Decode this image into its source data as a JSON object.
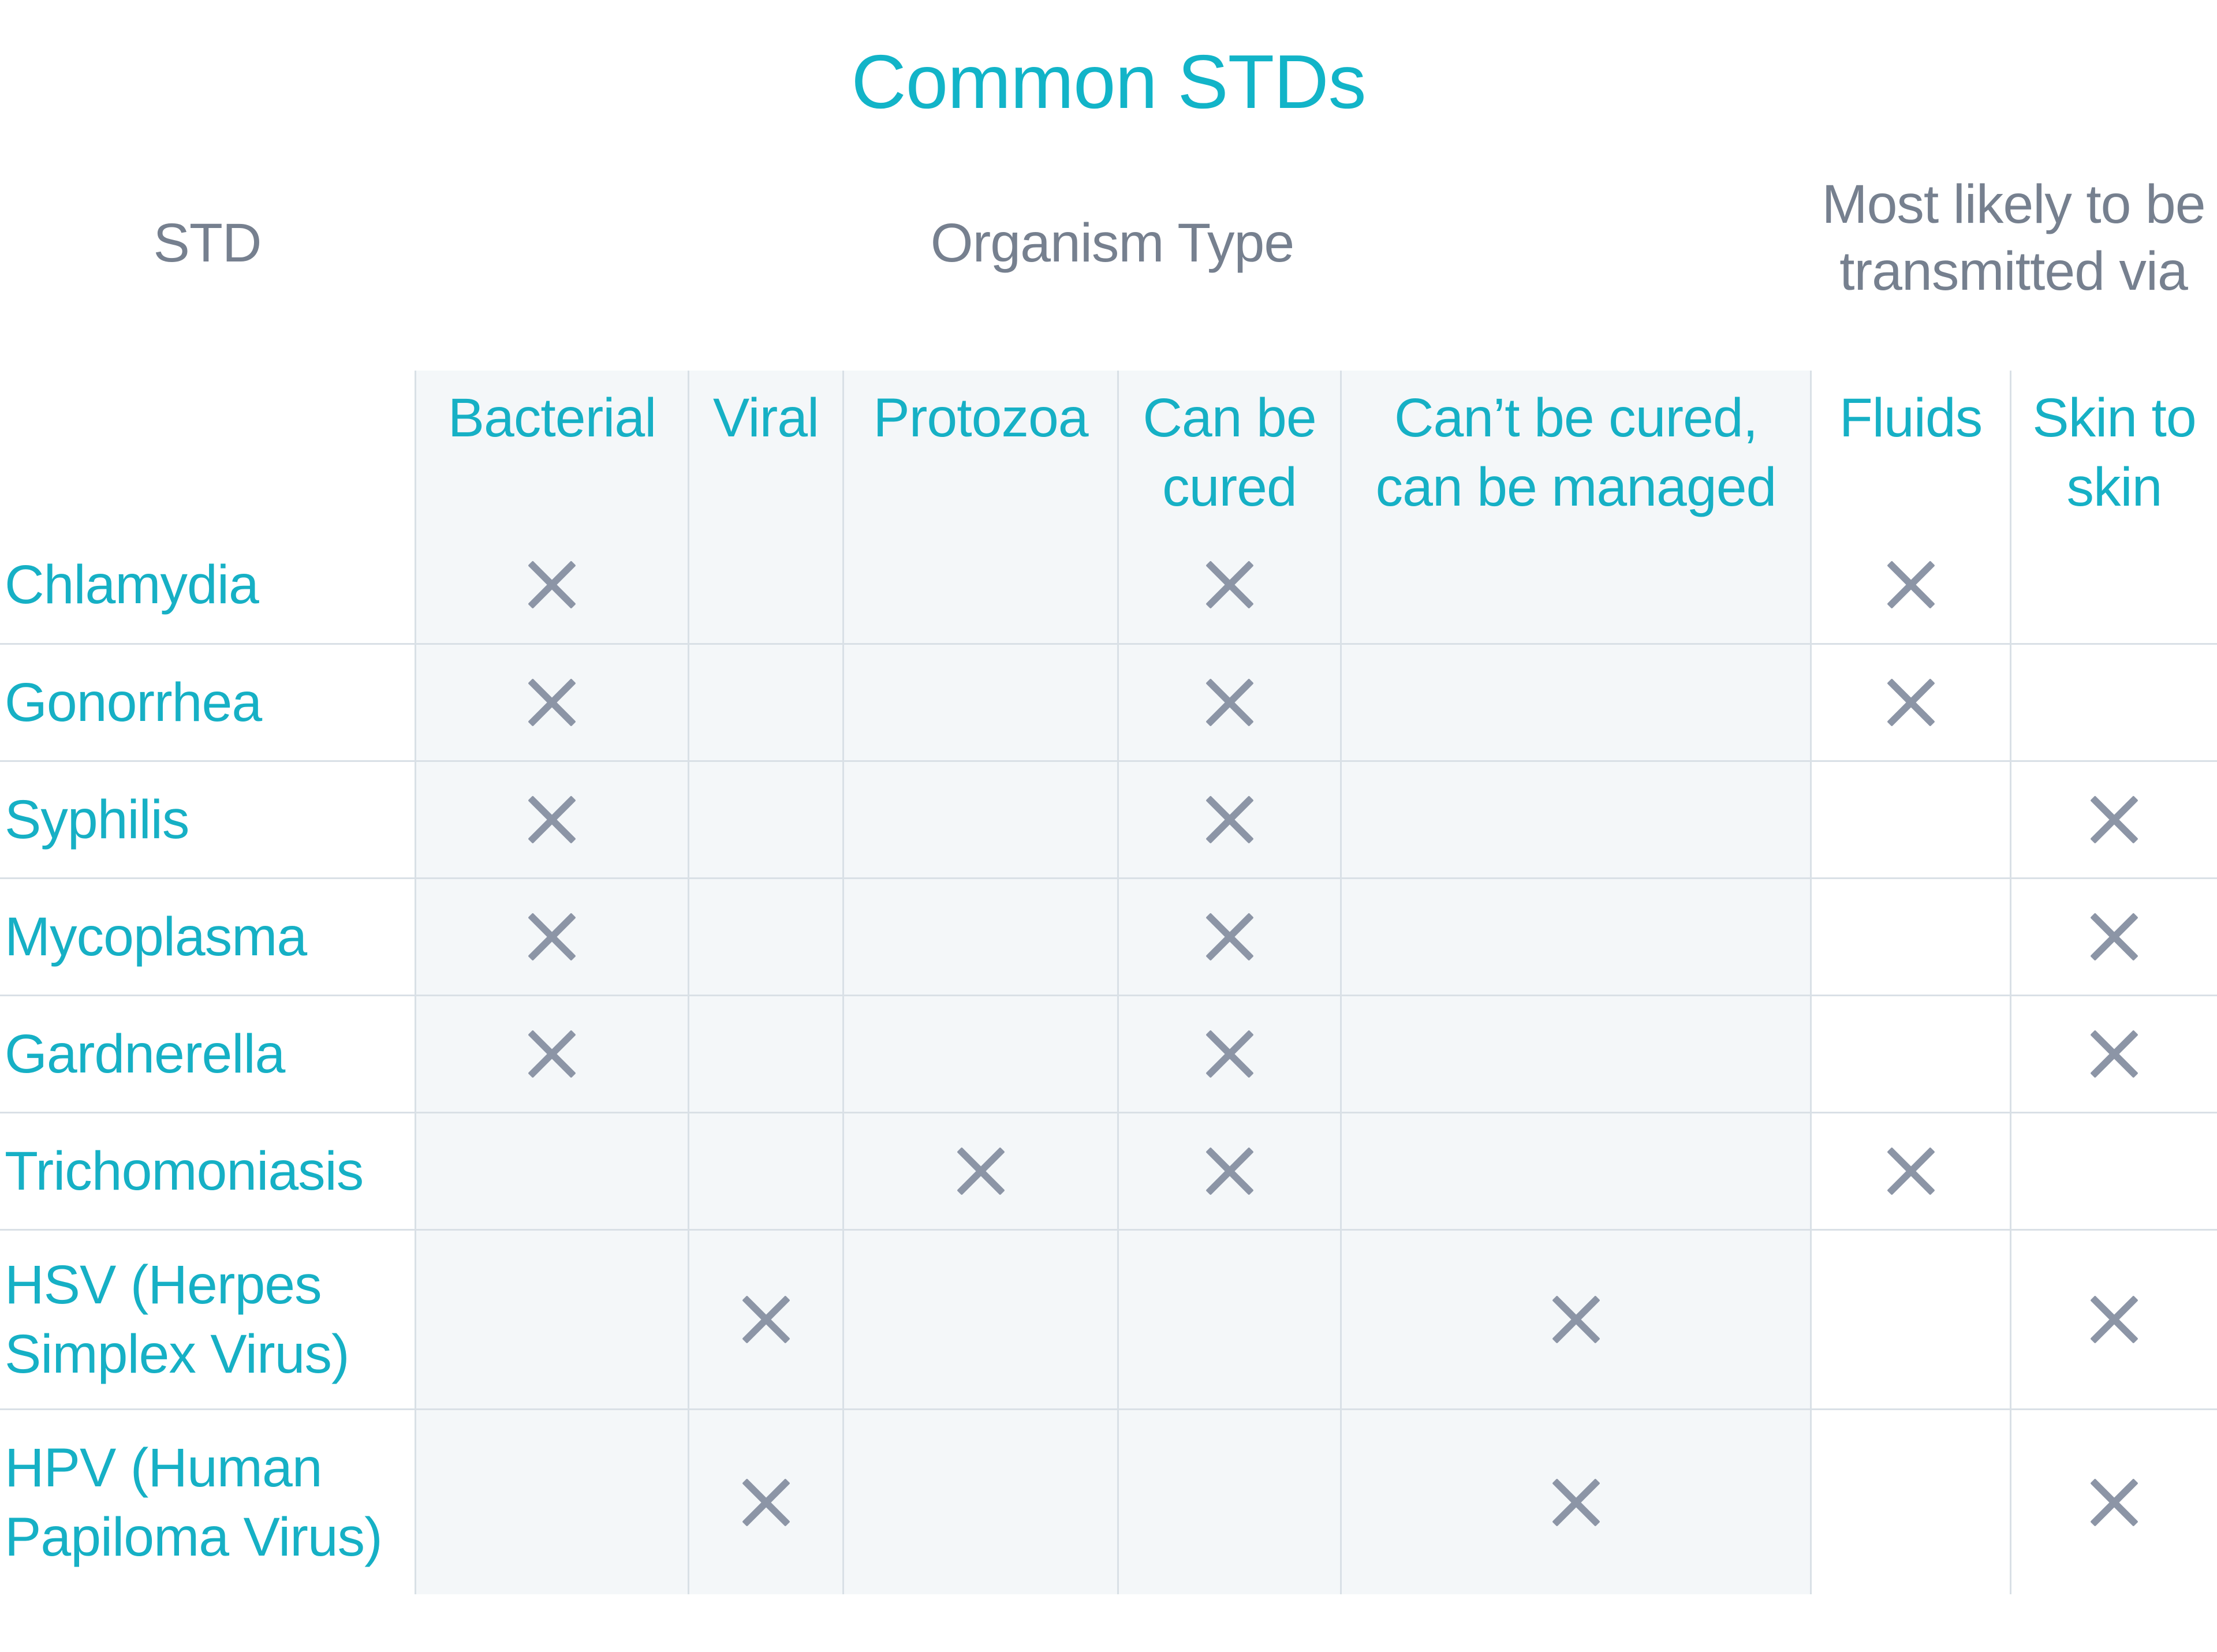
{
  "title": "Common STDs",
  "group_headers": {
    "std": "STD",
    "organism_type": "Organism Type",
    "transmission": "Most likely to be\ntransmitted via"
  },
  "columns": [
    "Bacterial",
    "Viral",
    "Protozoa",
    "Can be\ncured",
    "Can’t be cured,\ncan be managed",
    "Fluids",
    "Skin to\nskin"
  ],
  "rows": [
    {
      "label": "Chlamydia",
      "marks": [
        true,
        false,
        false,
        true,
        false,
        true,
        false
      ]
    },
    {
      "label": "Gonorrhea",
      "marks": [
        true,
        false,
        false,
        true,
        false,
        true,
        false
      ]
    },
    {
      "label": "Syphilis",
      "marks": [
        true,
        false,
        false,
        true,
        false,
        false,
        true
      ]
    },
    {
      "label": "Mycoplasma",
      "marks": [
        true,
        false,
        false,
        true,
        false,
        false,
        true
      ]
    },
    {
      "label": "Gardnerella",
      "marks": [
        true,
        false,
        false,
        true,
        false,
        false,
        true
      ]
    },
    {
      "label": "Trichomoniasis",
      "marks": [
        false,
        false,
        true,
        true,
        false,
        true,
        false
      ]
    },
    {
      "label": "HSV (Herpes\nSimplex Virus)",
      "marks": [
        false,
        true,
        false,
        false,
        true,
        false,
        true
      ]
    },
    {
      "label": "HPV (Human\nPapiloma Virus)",
      "marks": [
        false,
        true,
        false,
        false,
        true,
        false,
        true
      ]
    }
  ],
  "x_mark": {
    "icon": "x-mark-icon",
    "glyph": "✕",
    "color": "#8C95A6"
  },
  "colors": {
    "title_teal": "#12B4C8",
    "accent_teal": "#16B0C5",
    "header_gray": "#76808F",
    "x_mark_gray": "#8C95A6",
    "divider": "#D9E0E6",
    "shaded_background": "#F4F7F9"
  },
  "chart_data": {
    "type": "table",
    "title": "Common STDs",
    "row_header": "STD",
    "column_groups": [
      {
        "group": "Organism Type",
        "columns": [
          "Bacterial",
          "Viral",
          "Protozoa",
          "Can be cured",
          "Can’t be cured, can be managed"
        ]
      },
      {
        "group": "Most likely to be transmitted via",
        "columns": [
          "Fluids",
          "Skin to skin"
        ]
      }
    ],
    "columns": [
      "Bacterial",
      "Viral",
      "Protozoa",
      "Can be cured",
      "Can’t be cured, can be managed",
      "Fluids",
      "Skin to skin"
    ],
    "row_labels": [
      "Chlamydia",
      "Gonorrhea",
      "Syphilis",
      "Mycoplasma",
      "Gardnerella",
      "Trichomoniasis",
      "HSV (Herpes Simplex Virus)",
      "HPV (Human Papiloma Virus)"
    ],
    "matrix": [
      [
        1,
        0,
        0,
        1,
        0,
        1,
        0
      ],
      [
        1,
        0,
        0,
        1,
        0,
        1,
        0
      ],
      [
        1,
        0,
        0,
        1,
        0,
        0,
        1
      ],
      [
        1,
        0,
        0,
        1,
        0,
        0,
        1
      ],
      [
        1,
        0,
        0,
        1,
        0,
        0,
        1
      ],
      [
        0,
        0,
        1,
        1,
        0,
        1,
        0
      ],
      [
        0,
        1,
        0,
        0,
        1,
        0,
        1
      ],
      [
        0,
        1,
        0,
        0,
        1,
        0,
        1
      ]
    ],
    "mark_symbol": "✕"
  }
}
